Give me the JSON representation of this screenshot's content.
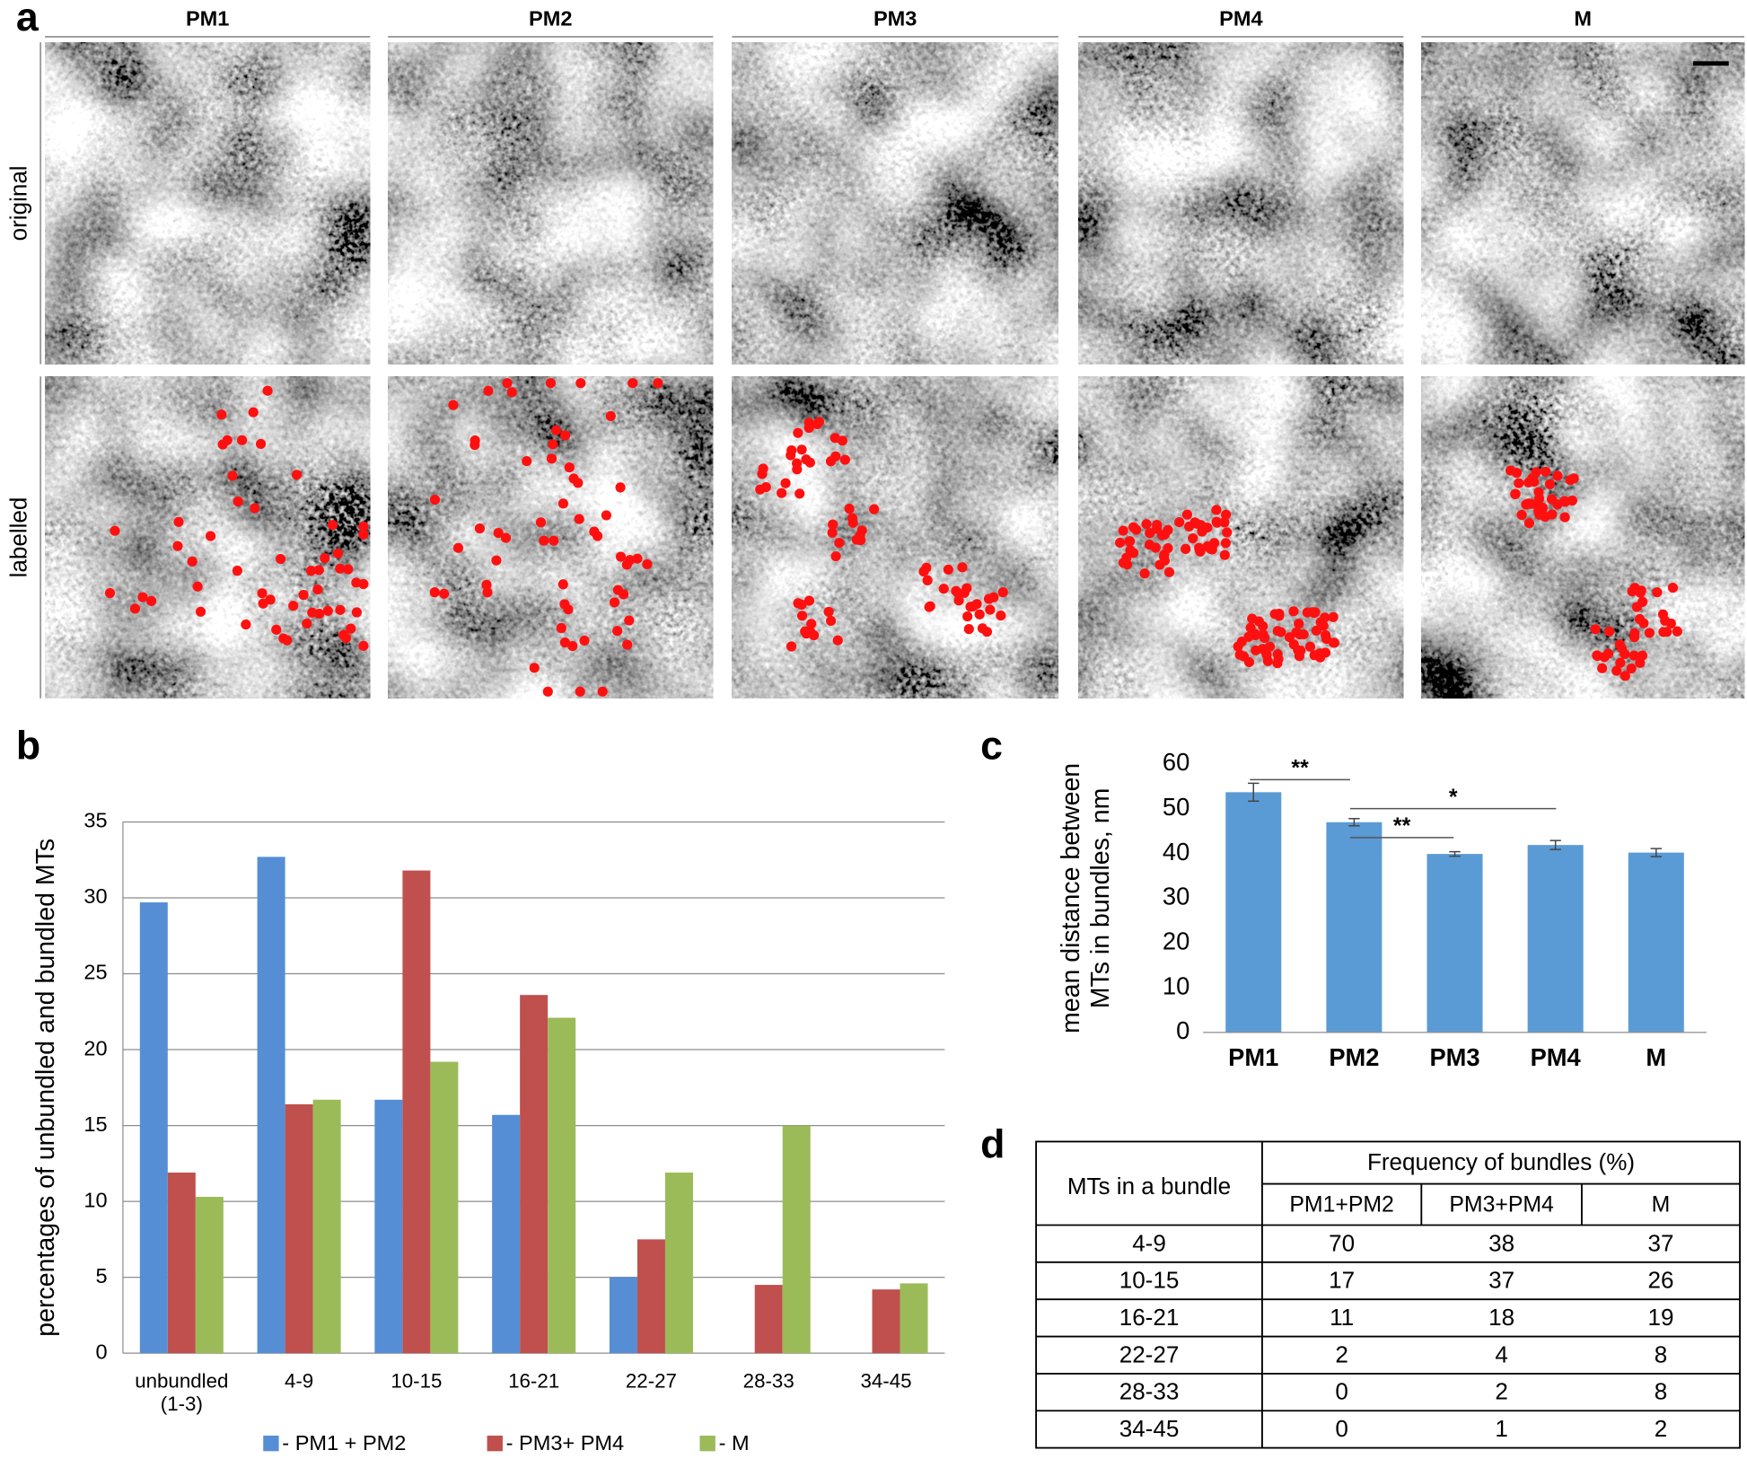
{
  "panels": {
    "labels": [
      "a",
      "b",
      "c",
      "d"
    ]
  },
  "micrographs": {
    "columns": [
      "PM1",
      "PM2",
      "PM3",
      "PM4",
      "M"
    ],
    "rows": [
      "original",
      "labelled"
    ]
  },
  "chart_data": [
    {
      "type": "bar",
      "ylabel": "percentages of unbundled and bundled MTs",
      "categories": [
        "unbundled\n(1-3)",
        "4-9",
        "10-15",
        "16-21",
        "22-27",
        "28-33",
        "34-45"
      ],
      "series": [
        {
          "name": "- PM1 + PM2",
          "color": "#558ed5",
          "values": [
            29.7,
            32.7,
            16.7,
            15.7,
            5.0,
            0,
            0
          ]
        },
        {
          "name": "- PM3+ PM4",
          "color": "#c0504d",
          "values": [
            11.9,
            16.4,
            31.8,
            23.6,
            7.5,
            4.5,
            4.2
          ]
        },
        {
          "name": "- M",
          "color": "#9bbb59",
          "values": [
            10.3,
            16.7,
            19.2,
            22.1,
            11.9,
            15.0,
            4.6
          ]
        }
      ],
      "ylim": [
        0,
        35
      ],
      "yticks": [
        0,
        5,
        10,
        15,
        20,
        25,
        30,
        35
      ],
      "grid": true,
      "legend": "bottom"
    },
    {
      "type": "bar",
      "ylabel": "mean distance between\nMTs in bundles, nm",
      "categories": [
        "PM1",
        "PM2",
        "PM3",
        "PM4",
        "M"
      ],
      "values": [
        53.7,
        47.0,
        39.9,
        41.9,
        40.2
      ],
      "errors": [
        2.0,
        0.8,
        0.5,
        1.0,
        0.9
      ],
      "color": "#5b9bd5",
      "ylim": [
        0,
        60
      ],
      "yticks": [
        0,
        10,
        20,
        30,
        40,
        50,
        60
      ],
      "grid": false,
      "annotations": [
        "**",
        "*",
        "**"
      ]
    }
  ],
  "table": {
    "header": [
      "MTs in a bundle",
      "Frequency of bundles (%)"
    ],
    "columns": [
      "PM1+PM2",
      "PM3+PM4",
      "M"
    ],
    "rows": [
      [
        "4-9",
        70,
        38,
        37
      ],
      [
        "10-15",
        17,
        37,
        26
      ],
      [
        "16-21",
        11,
        18,
        19
      ],
      [
        "22-27",
        2,
        4,
        8
      ],
      [
        "28-33",
        0,
        2,
        8
      ],
      [
        "34-45",
        0,
        1,
        2
      ]
    ]
  }
}
